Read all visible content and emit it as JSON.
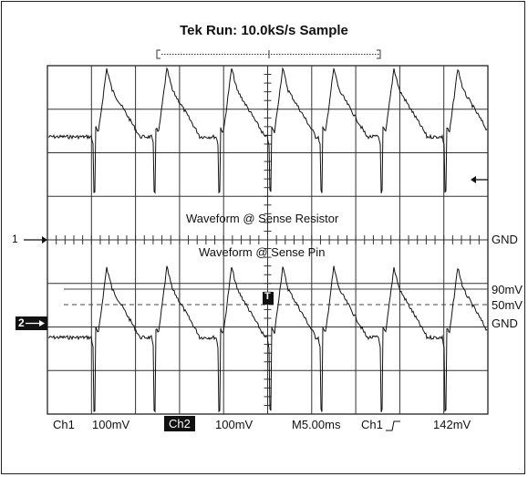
{
  "header": {
    "title": "Tek Run: 10.0kS/s Sample"
  },
  "traces": {
    "label_top": "Waveform @ Sense Resistor",
    "label_bottom": "Waveform @ Sense Pin",
    "marker_1": "1",
    "marker_2": "2",
    "trigger_marker": "T"
  },
  "right_labels": {
    "gnd1": "GND",
    "level_90": "90mV",
    "level_50": "50mV",
    "gnd2": "GND"
  },
  "status_bar": {
    "ch1": "Ch1",
    "ch1_scale": "100mV",
    "ch2": "Ch2",
    "ch2_scale": "100mV",
    "timebase": "M5.00ms",
    "trig_source": "Ch1",
    "trig_level": "142mV"
  },
  "colors": {
    "grid": "#222222",
    "trace": "#111111",
    "background": "#ffffff"
  }
}
